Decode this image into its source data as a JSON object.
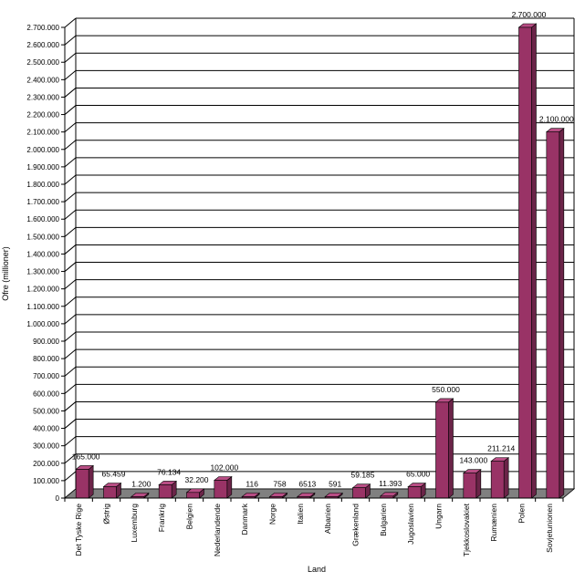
{
  "chart_data": {
    "type": "bar",
    "title": "",
    "xlabel": "Land",
    "ylabel": "Ofre (millioner)",
    "ylim": [
      0,
      2700000
    ],
    "y_tick_step": 100000,
    "grid": true,
    "legend": "none",
    "three_d": true,
    "categories": [
      "Det Tyske Rige",
      "Østrig",
      "Luxemburg",
      "Frankrig",
      "Belgien",
      "Nederlandende",
      "Danmark",
      "Norge",
      "Italien",
      "Albanien",
      "Grækenland",
      "Bulgarien",
      "Jugoslavien",
      "Ungarn",
      "Tjekkoslovakiet",
      "Rumænien",
      "Polen",
      "Sovjetunionen"
    ],
    "values": [
      165000,
      65459,
      1200,
      76134,
      32200,
      102000,
      116,
      758,
      6513,
      591,
      59185,
      11393,
      65000,
      550000,
      143000,
      211214,
      2700000,
      2100000
    ],
    "data_labels": [
      "165.000",
      "65.459",
      "1.200",
      "76.134",
      "32.200",
      "102.000",
      "116",
      "758",
      "6513",
      "591",
      "59.185",
      "11.393",
      "65.000",
      "550.000",
      "143.000",
      "211.214",
      "2.700.000",
      "2.100.000"
    ],
    "y_tick_labels": [
      "0",
      "100.000",
      "200.000",
      "300.000",
      "400.000",
      "500.000",
      "600.000",
      "700.000",
      "800.000",
      "900.000",
      "1.000.000",
      "1.100.000",
      "1.200.000",
      "1.300.000",
      "1.400.000",
      "1.500.000",
      "1.600.000",
      "1.700.000",
      "1.800.000",
      "1.900.000",
      "2.000.000",
      "2.100.000",
      "2.200.000",
      "2.300.000",
      "2.400.000",
      "2.500.000",
      "2.600.000",
      "2.700.000"
    ],
    "colors": {
      "bar_front": "#993366",
      "bar_top": "#b84d84",
      "bar_side": "#6b2448",
      "floor": "#808080",
      "grid": "#000000"
    }
  }
}
